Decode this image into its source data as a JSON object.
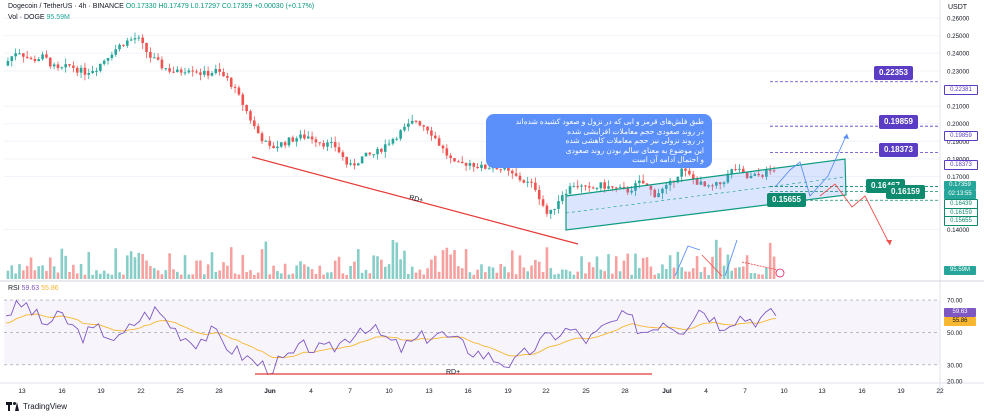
{
  "header": {
    "symbol": "Dogecoin / TetherUS · 4h · BINANCE",
    "ohlc": "O0.17330 H0.17479 L0.17297 C0.17359 +0.00030 (+0.17%)",
    "volume_label": "Vol · DOGE",
    "volume_value": "95.59M",
    "currency": "USDT"
  },
  "rsi_header": {
    "label": "RSI",
    "value": "59.63",
    "ma": "55.86"
  },
  "note": {
    "lines": [
      "طبق فلش‌های قرمز و ابی که در نزول و صعود کشیده شده‌اند",
      "در روند صعودی حجم معاملات افزایشی شده",
      "در روند نزولی نیز حجم معاملات کاهشی شده",
      "این موضوع به معنای سالم بودن روند صعودی",
      "و احتمال ادامه آن است"
    ]
  },
  "brand": "TradingView",
  "chart_data": {
    "type": "candlestick",
    "title": "Dogecoin / TetherUS · 4h · BINANCE",
    "ylim": [
      0.13,
      0.26
    ],
    "y_ticks": [
      "0.26000",
      "0.25000",
      "0.24000",
      "0.23000",
      "0.21000",
      "0.20000",
      "0.19000",
      "0.18000",
      "0.17000",
      "0.14000"
    ],
    "x_ticks": [
      "13",
      "16",
      "19",
      "22",
      "25",
      "28",
      "Jun",
      "4",
      "7",
      "10",
      "13",
      "16",
      "19",
      "22",
      "25",
      "28",
      "Jul",
      "4",
      "7",
      "10",
      "13",
      "16",
      "19",
      "22"
    ],
    "close_path": [
      0.233,
      0.242,
      0.236,
      0.238,
      0.23,
      0.233,
      0.229,
      0.232,
      0.24,
      0.246,
      0.249,
      0.238,
      0.232,
      0.229,
      0.232,
      0.228,
      0.23,
      0.224,
      0.211,
      0.196,
      0.186,
      0.189,
      0.192,
      0.193,
      0.189,
      0.187,
      0.175,
      0.181,
      0.183,
      0.19,
      0.196,
      0.202,
      0.197,
      0.186,
      0.176,
      0.178,
      0.175,
      0.176,
      0.172,
      0.168,
      0.164,
      0.147,
      0.16,
      0.166,
      0.162,
      0.165,
      0.163,
      0.162,
      0.167,
      0.16,
      0.164,
      0.174,
      0.168,
      0.163,
      0.166,
      0.175,
      0.169,
      0.171,
      0.174
    ],
    "price_levels": [
      {
        "value": "0.22353",
        "kind": "target"
      },
      {
        "value": "0.22381",
        "kind": "target-line"
      },
      {
        "value": "0.19859",
        "kind": "target"
      },
      {
        "value": "0.18373",
        "kind": "target"
      },
      {
        "value": "0.17359",
        "kind": "last"
      },
      {
        "value": "0.16467",
        "kind": "support"
      },
      {
        "value": "0.16439",
        "kind": "support-line"
      },
      {
        "value": "0.16159",
        "kind": "support"
      },
      {
        "value": "0.15655",
        "kind": "support"
      }
    ],
    "countdown": "02:13:55",
    "divergence_label": "RD+",
    "rsi": {
      "label": "RSI",
      "value": 59.63,
      "ma": 55.86,
      "levels": [
        70,
        50,
        30
      ],
      "ylim": [
        20,
        75
      ],
      "y_ticks": [
        "70.00",
        "50.00",
        "30.00",
        "20.00"
      ]
    },
    "volume": {
      "last": "95.59M"
    }
  },
  "colors": {
    "up": "#26a69a",
    "down": "#ef5350",
    "channel": "#0e9b7f",
    "rsi": "#7e57c2",
    "rsi_ma": "#f7b731",
    "target": "#5b3cc4",
    "note": "#5b8ff9",
    "rd_line": "#e53935"
  }
}
